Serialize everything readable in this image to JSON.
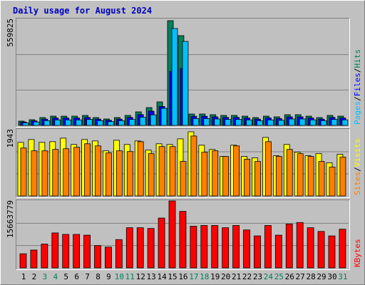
{
  "chart_data": [
    {
      "type": "bar",
      "title": "Daily usage for August 2024",
      "legend_separator": "/",
      "ylim": [
        0,
        559825
      ],
      "yticks": [
        559825
      ],
      "grid": true,
      "series": [
        {
          "name": "Hits",
          "color": "#00805c",
          "values": [
            22500,
            30000,
            41300,
            48800,
            48800,
            48800,
            52600,
            41300,
            33800,
            41300,
            52600,
            71400,
            93900,
            124000,
            552300,
            473400,
            60100,
            60100,
            56400,
            52600,
            52600,
            48800,
            41300,
            48800,
            45100,
            56400,
            56400,
            48800,
            41300,
            52600,
            48800
          ]
        },
        {
          "name": "Files",
          "color": "#0000ff",
          "values": [
            18000,
            24000,
            33000,
            39000,
            39000,
            39000,
            42000,
            33000,
            27000,
            33000,
            42000,
            57000,
            75000,
            100000,
            285000,
            300000,
            48000,
            48000,
            45000,
            42000,
            42000,
            39000,
            33000,
            39000,
            36000,
            45000,
            45000,
            39000,
            33000,
            42000,
            39000
          ]
        },
        {
          "name": "Pages",
          "color": "#00c0ff",
          "values": [
            13500,
            18000,
            25000,
            29000,
            29000,
            29000,
            31500,
            25000,
            20000,
            25000,
            31500,
            43000,
            56000,
            90000,
            511000,
            443000,
            36000,
            36000,
            34000,
            31500,
            31500,
            29000,
            25000,
            29000,
            27000,
            34000,
            34000,
            29000,
            25000,
            31500,
            29000
          ]
        }
      ]
    },
    {
      "type": "bar",
      "legend_separator": "/",
      "ylim": [
        0,
        1943
      ],
      "yticks": [
        1943
      ],
      "grid": true,
      "series": [
        {
          "name": "Visits",
          "color": "#ffff00",
          "values": [
            1571,
            1654,
            1571,
            1592,
            1695,
            1509,
            1654,
            1612,
            1323,
            1633,
            1509,
            1612,
            1344,
            1530,
            1509,
            1674,
            1881,
            1488,
            1364,
            1158,
            1488,
            1158,
            1116,
            1716,
            1178,
            1509,
            1282,
            1178,
            1240,
            972,
            1220
          ]
        },
        {
          "name": "Sites",
          "color": "#ff8000",
          "values": [
            1406,
            1323,
            1323,
            1364,
            1385,
            1426,
            1530,
            1468,
            1261,
            1323,
            1302,
            1592,
            1240,
            1447,
            1447,
            1013,
            1757,
            1282,
            1323,
            1158,
            1468,
            1075,
            1013,
            1592,
            1158,
            1364,
            1240,
            1158,
            1013,
            848,
            1137
          ]
        }
      ]
    },
    {
      "type": "bar",
      "ylim": [
        0,
        15663779
      ],
      "yticks": [
        15663779
      ],
      "grid": true,
      "categories": [
        "1",
        "2",
        "3",
        "4",
        "5",
        "6",
        "7",
        "8",
        "9",
        "10",
        "11",
        "12",
        "13",
        "14",
        "15",
        "16",
        "17",
        "18",
        "19",
        "20",
        "21",
        "22",
        "23",
        "24",
        "25",
        "26",
        "27",
        "28",
        "29",
        "30",
        "31"
      ],
      "category_colors": [
        "#000000",
        "#000000",
        "#00805c",
        "#00805c",
        "#000000",
        "#000000",
        "#000000",
        "#000000",
        "#000000",
        "#00805c",
        "#00805c",
        "#000000",
        "#000000",
        "#000000",
        "#000000",
        "#000000",
        "#00805c",
        "#00805c",
        "#000000",
        "#000000",
        "#000000",
        "#000000",
        "#000000",
        "#00805c",
        "#00805c",
        "#000000",
        "#000000",
        "#000000",
        "#000000",
        "#000000",
        "#00805c"
      ],
      "series": [
        {
          "name": "KBytes",
          "color": "#ff0000",
          "values": [
            3306800,
            4177000,
            5569300,
            8180000,
            7832000,
            7832000,
            7658000,
            5221000,
            4873000,
            6614000,
            9398000,
            9398000,
            9224000,
            11661000,
            15663779,
            13227000,
            9746000,
            9920000,
            9920000,
            9398000,
            9920000,
            8876000,
            7484000,
            9920000,
            7658000,
            10268000,
            10617000,
            9398000,
            8528000,
            7484000,
            9050000
          ]
        }
      ]
    }
  ]
}
